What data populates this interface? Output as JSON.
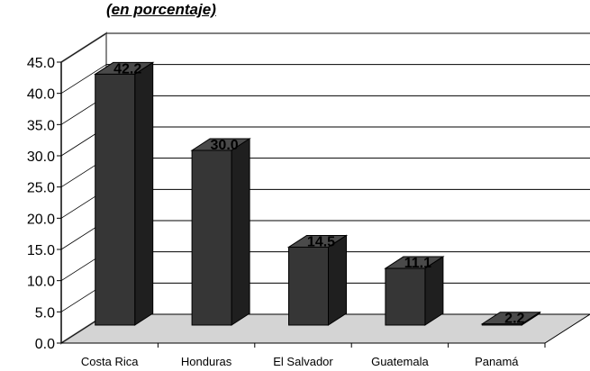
{
  "chart_data": {
    "type": "bar",
    "subtitle": "(en porcentaje)",
    "categories": [
      "Costa Rica",
      "Honduras",
      "El Salvador",
      "Guatemala",
      "Panamá"
    ],
    "values": [
      42.2,
      30.0,
      14.5,
      11.1,
      2.2
    ],
    "data_labels": [
      "42.2",
      "30.0",
      "14.5",
      "11.1",
      "2.2"
    ],
    "yticks": [
      "0.0",
      "5.0",
      "10.0",
      "15.0",
      "20.0",
      "25.0",
      "30.0",
      "35.0",
      "40.0",
      "45.0"
    ],
    "ylim": [
      0,
      45
    ],
    "grid": true,
    "legend": "none",
    "style": "3d",
    "colors": {
      "bar_front": "#363636",
      "bar_top": "#4a4a4a",
      "bar_side": "#1f1f1f",
      "floor": "#d4d4d4"
    }
  }
}
